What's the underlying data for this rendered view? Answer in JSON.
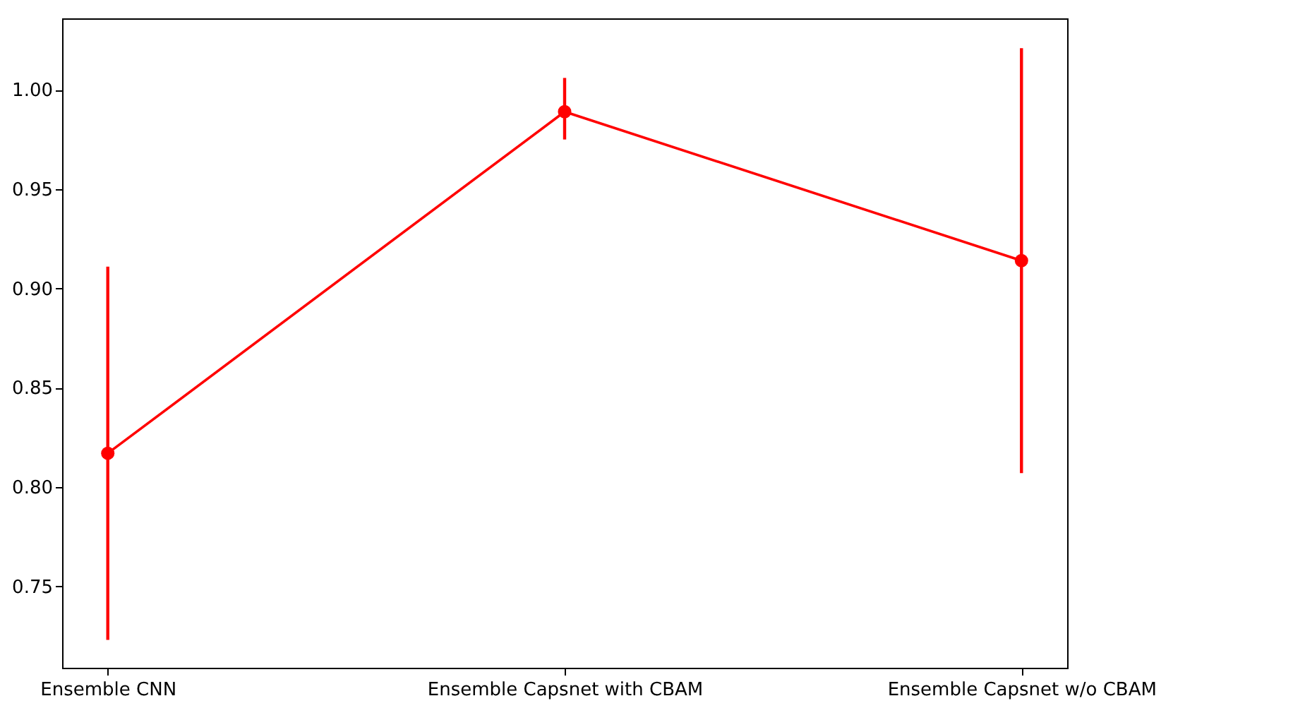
{
  "chart_data": {
    "type": "line",
    "categories": [
      "Ensemble CNN",
      "Ensemble Capsnet with CBAM",
      "Ensemble Capsnet w/o CBAM"
    ],
    "series": [
      {
        "color": "#ff0000",
        "values": [
          0.817,
          0.989,
          0.914
        ],
        "errors": [
          [
            0.723,
            0.911
          ],
          [
            0.975,
            1.006
          ],
          [
            0.807,
            1.021
          ]
        ]
      }
    ],
    "ylim": [
      0.709,
      1.036
    ],
    "yticks": [
      {
        "value": 0.75,
        "label": "0.75"
      },
      {
        "value": 0.8,
        "label": "0.80"
      },
      {
        "value": 0.85,
        "label": "0.85"
      },
      {
        "value": 0.9,
        "label": "0.90"
      },
      {
        "value": 0.95,
        "label": "0.95"
      },
      {
        "value": 1.0,
        "label": "1.00"
      }
    ],
    "marker": "circle",
    "line_style": "solid",
    "grid": false,
    "legend": false
  }
}
